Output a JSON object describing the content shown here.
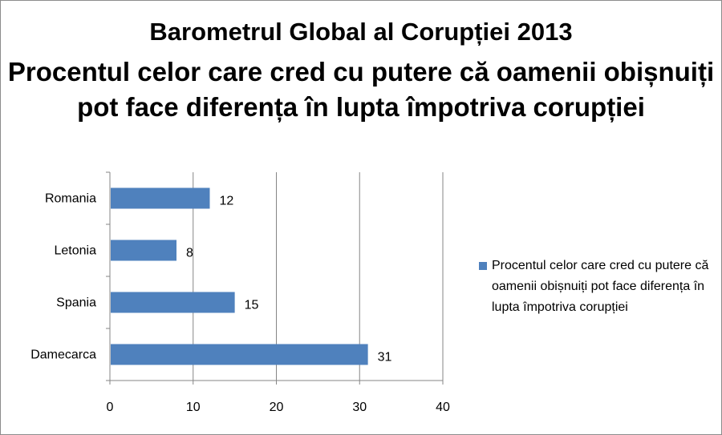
{
  "chart_data": {
    "type": "bar",
    "orientation": "horizontal",
    "title": "Barometrul Global al Corupției 2013",
    "subtitle": "Procentul celor care cred cu putere că oamenii obișnuiți pot face diferența în lupta împotriva corupției",
    "categories": [
      "Romania",
      "Letonia",
      "Spania",
      "Damecarca"
    ],
    "series": [
      {
        "name": "Procentul celor care cred cu putere că oamenii obișnuiți pot face diferența în lupta împotriva corupției",
        "values": [
          12,
          8,
          15,
          31
        ],
        "color": "#4f81bd"
      }
    ],
    "xlim": [
      0,
      40
    ],
    "xticks": [
      0,
      10,
      20,
      30,
      40
    ],
    "grid": "vertical",
    "legend_position": "right",
    "data_labels": true
  }
}
